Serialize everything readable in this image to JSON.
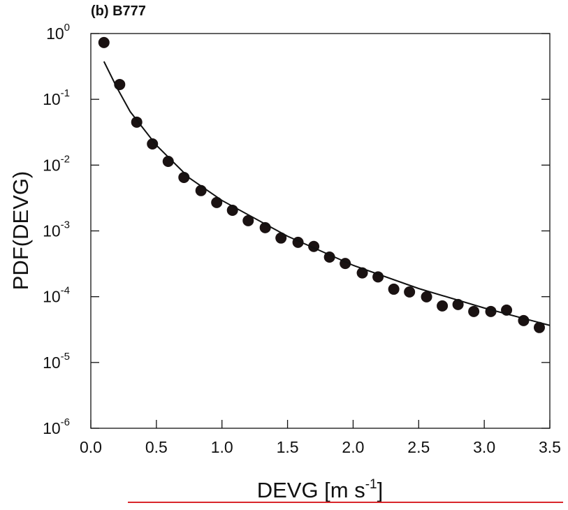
{
  "chart_data": {
    "type": "scatter",
    "title": "(b) B777",
    "x_label": [
      "DEVG [m s",
      "-1",
      "]"
    ],
    "y_label": "PDF(DEVG)",
    "xlim": [
      0,
      3.5
    ],
    "xticks": [
      {
        "value": 0,
        "label": "0.0"
      },
      0.5,
      {
        "value": 1,
        "label": "1.0"
      },
      1.5,
      {
        "value": 2,
        "label": "2.0"
      },
      2.5,
      {
        "value": 3,
        "label": "3.0"
      },
      3.5
    ],
    "ylim": [
      1e-06,
      1
    ],
    "yscale": "log",
    "yticks": [
      {
        "value": 1,
        "label": "10",
        "exponent": "0"
      },
      {
        "value": 0.1,
        "label": "10",
        "exponent": "-1"
      },
      {
        "value": 0.01,
        "label": "10",
        "exponent": "-2"
      },
      {
        "value": 0.001,
        "label": "10",
        "exponent": "-3"
      },
      {
        "value": 0.0001,
        "label": "10",
        "exponent": "-4"
      },
      {
        "value": 1e-05,
        "label": "10",
        "exponent": "-5"
      },
      {
        "value": 1e-06,
        "label": "10",
        "exponent": "-6"
      }
    ],
    "series": [
      {
        "mode": "markers",
        "color": "#1a1212",
        "x": [
          0.1,
          0.22,
          0.35,
          0.47,
          0.59,
          0.71,
          0.84,
          0.96,
          1.08,
          1.2,
          1.33,
          1.45,
          1.58,
          1.7,
          1.82,
          1.94,
          2.07,
          2.19,
          2.31,
          2.43,
          2.56,
          2.68,
          2.8,
          2.92,
          3.05,
          3.17,
          3.3,
          3.42
        ],
        "values": [
          0.73,
          0.168,
          0.045,
          0.021,
          0.0114,
          0.0065,
          0.0041,
          0.0027,
          0.00206,
          0.00143,
          0.00112,
          0.00078,
          0.00067,
          0.00058,
          0.0004,
          0.00032,
          0.00023,
          0.0002,
          0.00013,
          0.000118,
          9.95e-05,
          7.24e-05,
          7.6e-05,
          5.96e-05,
          5.96e-05,
          6.25e-05,
          4.33e-05,
          3.4e-05
        ]
      },
      {
        "mode": "line",
        "color": "#111111",
        "x": [
          0.1,
          0.2,
          0.3,
          0.5,
          0.75,
          1.0,
          1.5,
          2.0,
          2.5,
          3.0,
          3.5
        ],
        "values": [
          0.376,
          0.149,
          0.065,
          0.02,
          0.0064,
          0.0029,
          0.00083,
          0.0003,
          0.000133,
          6.73e-05,
          3.66e-05
        ]
      }
    ]
  }
}
